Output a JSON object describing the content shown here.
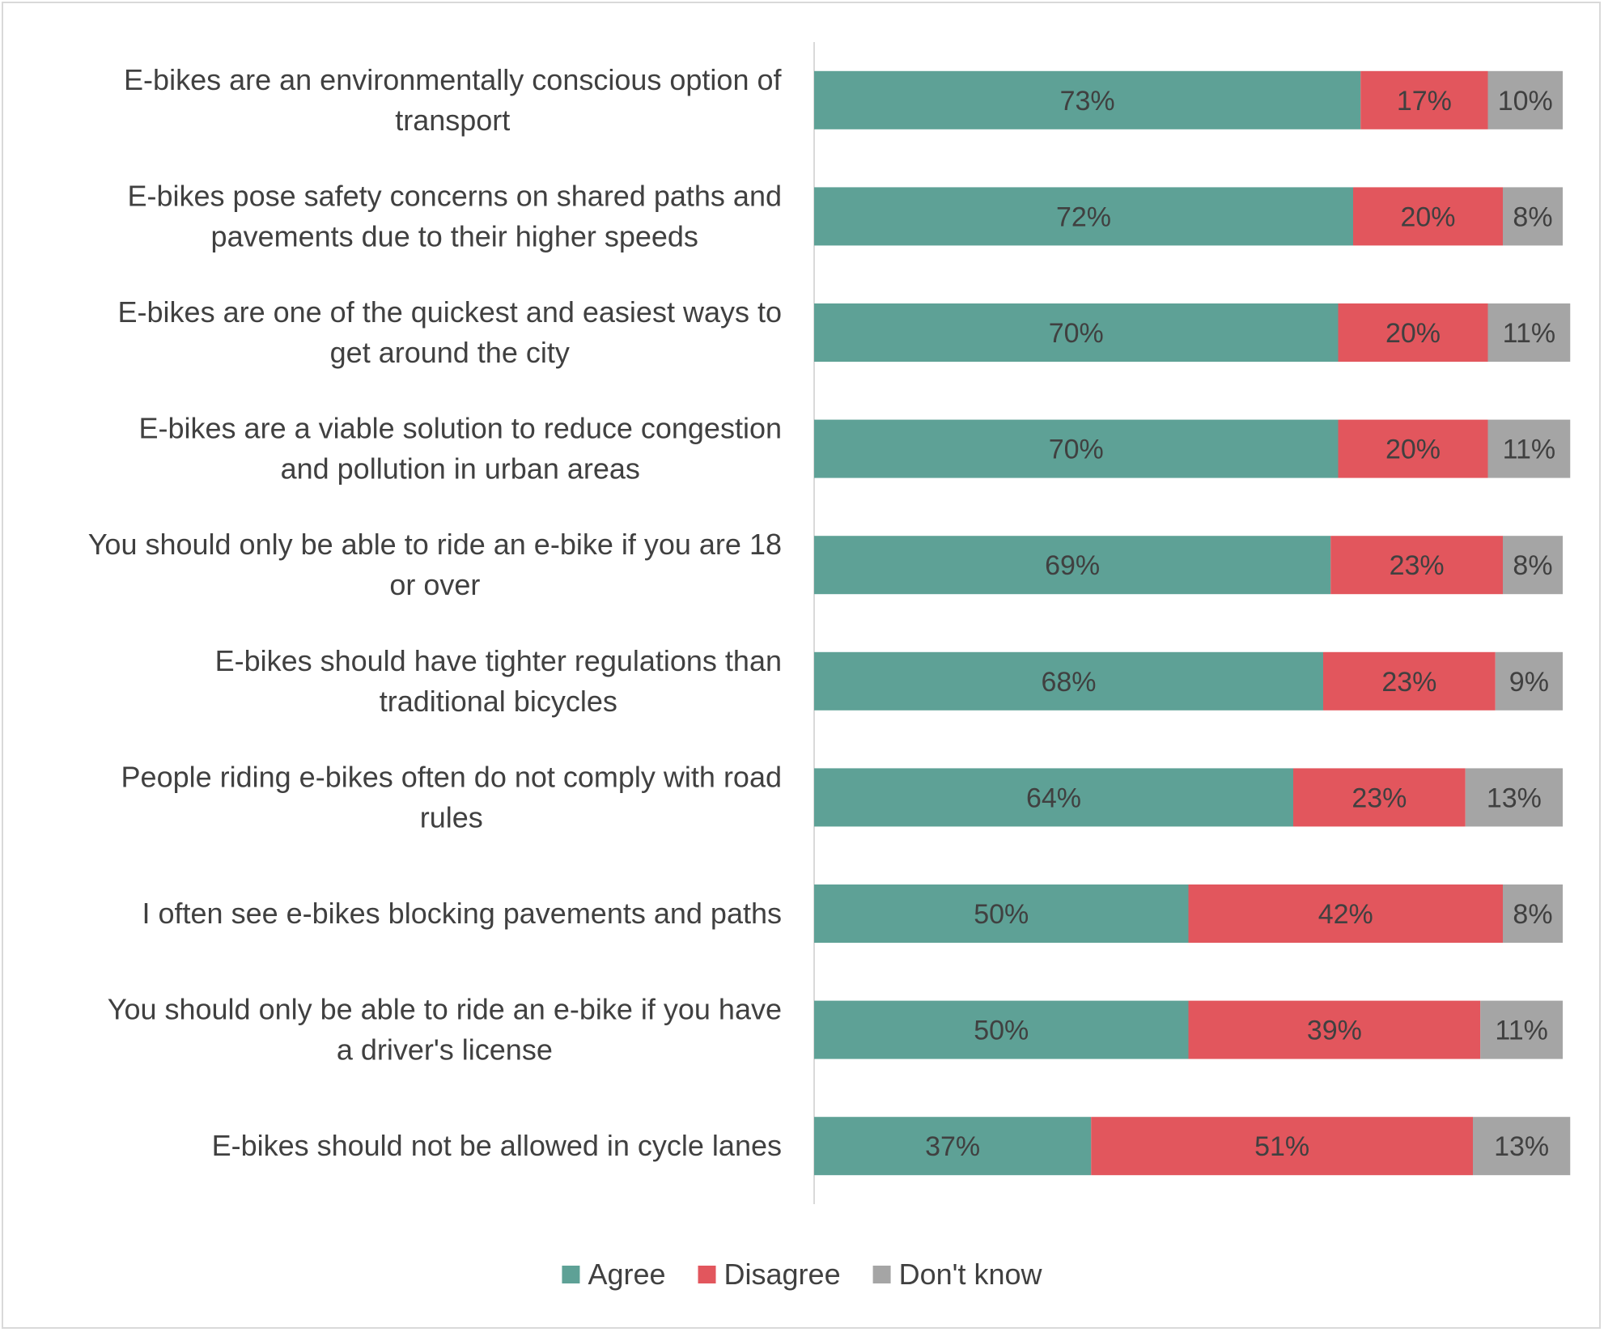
{
  "chart_data": {
    "type": "bar",
    "orientation": "horizontal",
    "stacked": true,
    "title": "",
    "xlabel": "",
    "ylabel": "",
    "xlim": [
      0,
      100
    ],
    "grid": false,
    "legend_position": "bottom",
    "categories": [
      [
        "E-bikes are an environmentally conscious option of",
        "transport"
      ],
      [
        "E-bikes pose safety concerns on shared paths and",
        "pavements due to their higher speeds"
      ],
      [
        "E-bikes are one of the quickest and easiest ways to",
        "get around the city"
      ],
      [
        "E-bikes are a viable solution to reduce congestion",
        "and pollution in urban areas"
      ],
      [
        "You should only be able to ride an e-bike if you are 18",
        "or over"
      ],
      [
        "E-bikes should have tighter regulations than",
        "traditional bicycles"
      ],
      [
        "People riding e-bikes often do not comply with road",
        "rules"
      ],
      [
        "I often see e-bikes blocking pavements and paths"
      ],
      [
        "You should only be able to ride an e-bike if you have",
        "a driver's license"
      ],
      [
        "E-bikes should not be allowed in cycle lanes"
      ]
    ],
    "series": [
      {
        "name": "Agree",
        "color": "#5ea196",
        "values": [
          73,
          72,
          70,
          70,
          69,
          68,
          64,
          50,
          50,
          37
        ]
      },
      {
        "name": "Disagree",
        "color": "#e2565d",
        "values": [
          17,
          20,
          20,
          20,
          23,
          23,
          23,
          42,
          39,
          51
        ]
      },
      {
        "name": "Don't know",
        "color": "#a5a5a5",
        "values": [
          10,
          8,
          11,
          11,
          8,
          9,
          13,
          8,
          11,
          13
        ]
      }
    ],
    "value_suffix": "%"
  }
}
